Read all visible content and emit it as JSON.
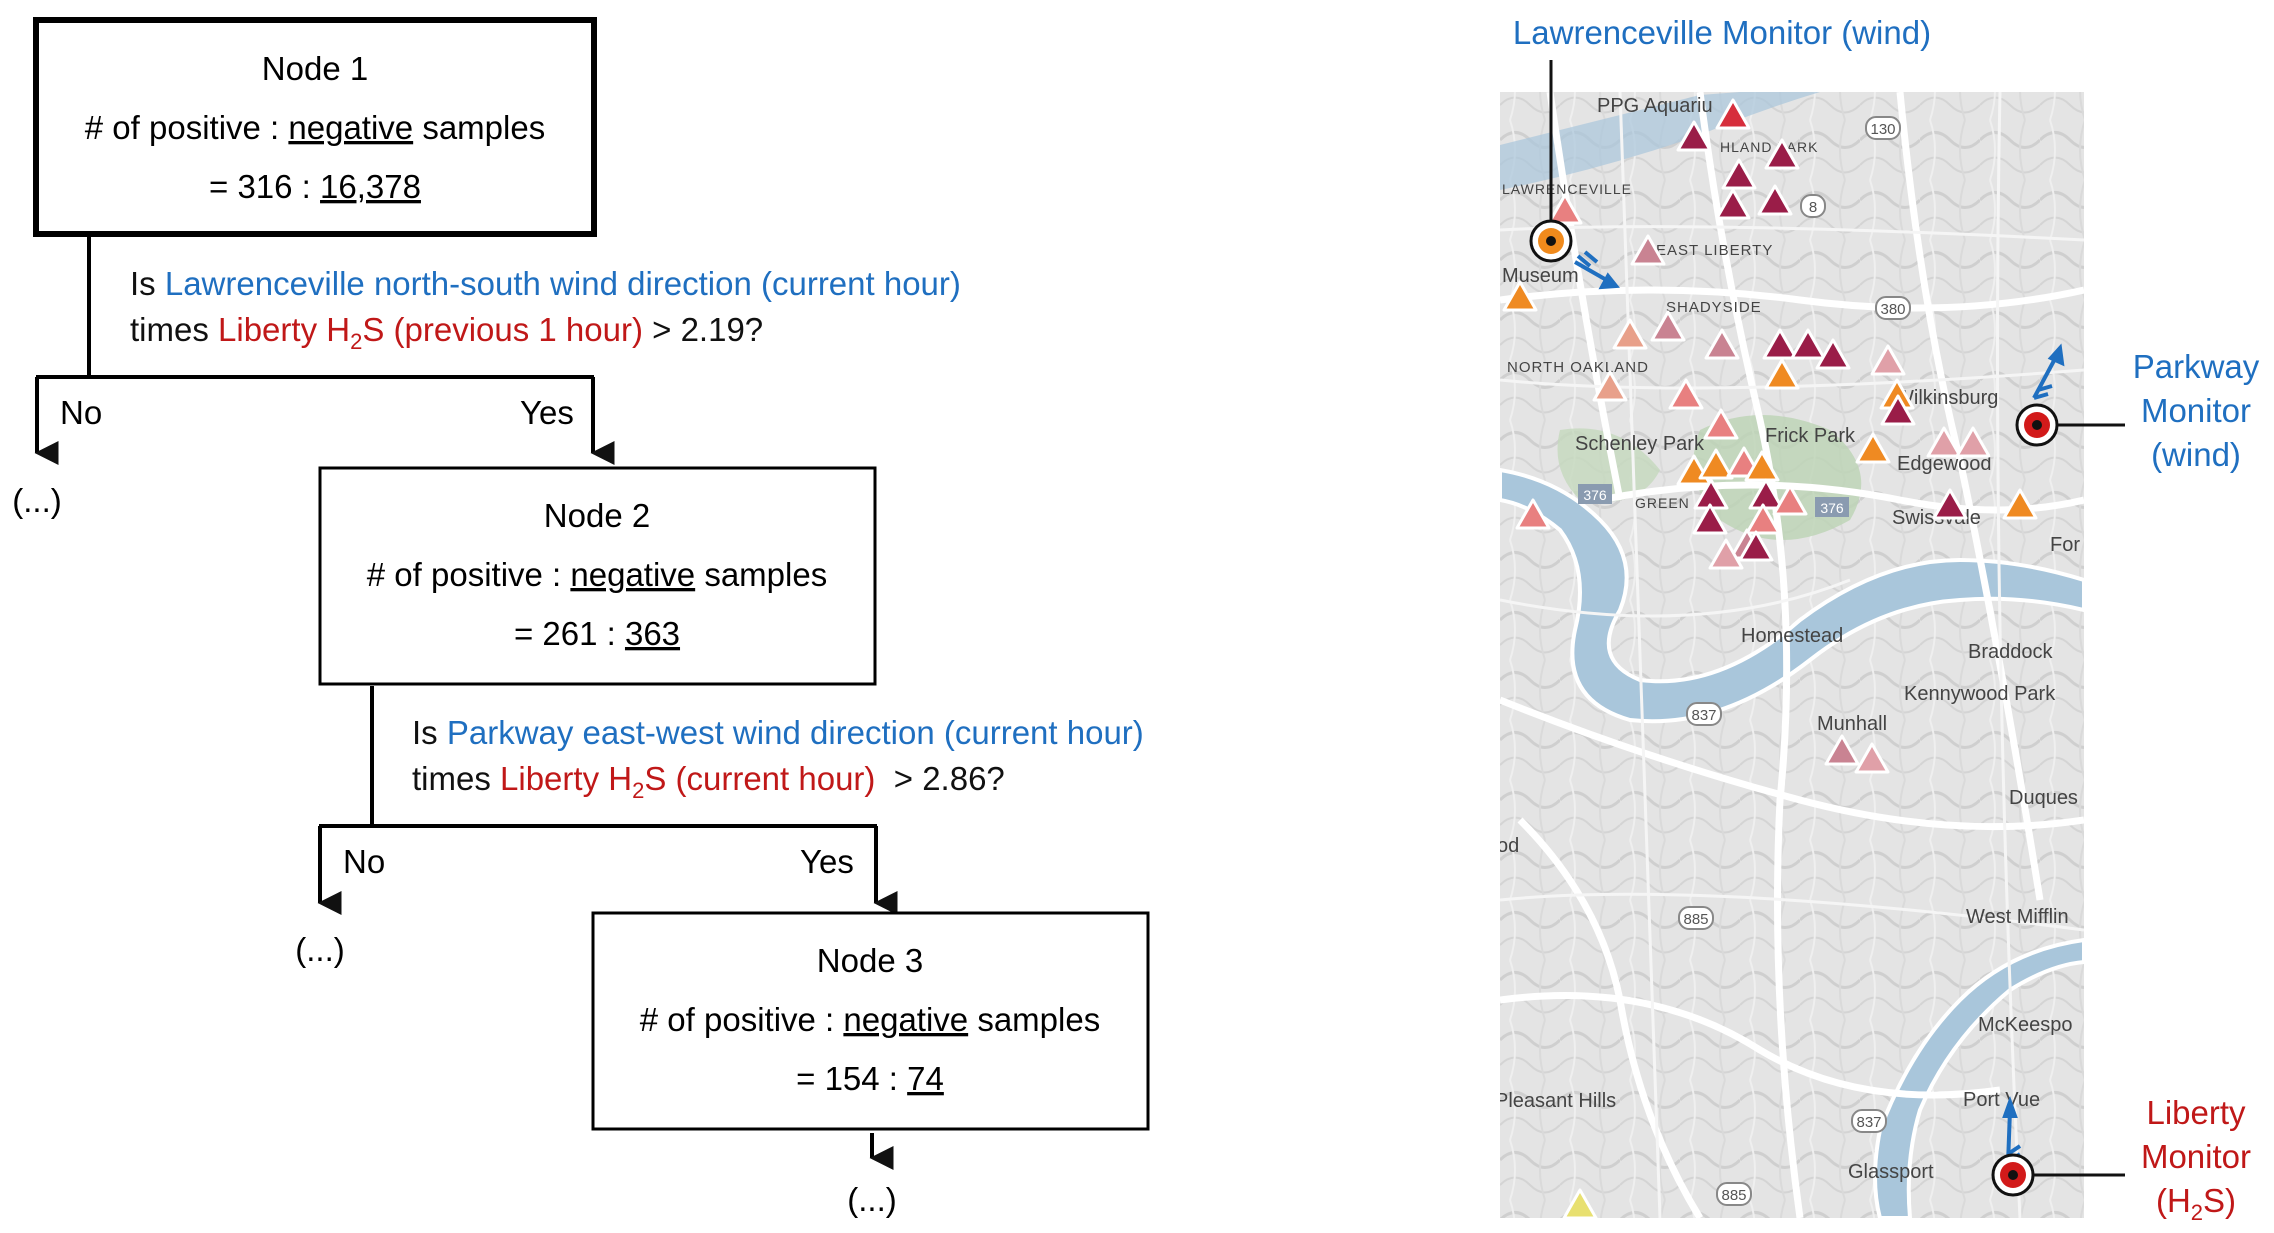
{
  "tree": {
    "node1": {
      "title": "Node 1",
      "line_a": "# of positive : ",
      "line_a_u": "negative",
      "line_a_b": " samples",
      "eq": "= 316 : ",
      "eq_u": "16,378"
    },
    "q1": {
      "is": "Is ",
      "wind": "Lawrenceville north-south wind direction (current hour)",
      "times": "times ",
      "liberty": "Liberty H",
      "sub": "2",
      "s_rest": "S (previous 1 hour)",
      "cmp": " > 2.19?"
    },
    "b1": {
      "no": "No",
      "yes": "Yes",
      "cont": "(...)"
    },
    "node2": {
      "title": "Node 2",
      "line_a": "# of positive : ",
      "line_a_u": "negative",
      "line_a_b": " samples",
      "eq": "= 261 : ",
      "eq_u": "363"
    },
    "q2": {
      "is": "Is ",
      "wind": "Parkway east-west wind direction (current hour)",
      "times": "times ",
      "liberty": "Liberty H",
      "sub": "2",
      "s_rest": "S (current hour)",
      "cmp": "  > 2.86?"
    },
    "b2": {
      "no": "No",
      "yes": "Yes",
      "cont": "(...)"
    },
    "node3": {
      "title": "Node 3",
      "line_a": "# of positive : ",
      "line_a_u": "negative",
      "line_a_b": " samples",
      "eq": "= 154 : ",
      "eq_u": "74"
    },
    "b3": {
      "cont": "(...)"
    }
  },
  "map": {
    "labels": {
      "lawrenceville": "Lawrenceville Monitor (wind)",
      "parkway_1": "Parkway",
      "parkway_2": "Monitor",
      "parkway_3": "(wind)",
      "liberty_1": "Liberty",
      "liberty_2": "Monitor",
      "liberty_3": "(H",
      "liberty_sub": "2",
      "liberty_4": "S)"
    },
    "places": [
      "PPG Aquariu",
      "LAWRENCEVILLE",
      "Museum",
      "EAST LIBERTY",
      "SHADYSIDE",
      "NORTH OAKLAND",
      "Schenley Park",
      "Frick Park",
      "Wilkinsburg",
      "Edgewood",
      "Swissvale",
      "GREEN",
      "Homestead",
      "Braddock",
      "Kennywood Park",
      "Munhall",
      "Duques",
      "West Mifflin",
      "McKeespo",
      "Port Vue",
      "Glassport",
      "Pleasant Hills",
      "For",
      "od",
      "HLAND PARK"
    ],
    "routes": [
      "130",
      "8",
      "380",
      "376",
      "376",
      "837",
      "885",
      "837",
      "885"
    ],
    "colors": {
      "wind_blue": "#1f6fc0",
      "h2s_red": "#c01818",
      "monitor_orange": "#f08a1c"
    }
  }
}
